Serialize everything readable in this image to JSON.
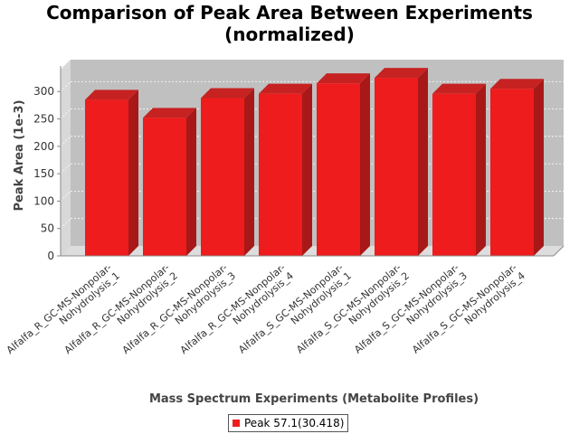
{
  "chart_data": {
    "type": "bar",
    "title_lines": [
      "Comparison of Peak Area Between Experiments",
      "(normalized)"
    ],
    "xlabel": "Mass Spectrum Experiments (Metabolite Profiles)",
    "ylabel": "Peak Area (1e-3)",
    "ylim": [
      0,
      340
    ],
    "yticks": [
      0,
      50,
      100,
      150,
      200,
      250,
      300
    ],
    "grid": true,
    "legend_position": "bottom",
    "categories": [
      [
        "Alfalfa_R_GC-MS-Nonpolar-",
        "Nohydrolysis_1"
      ],
      [
        "Alfalfa_R_GC-MS-Nonpolar-",
        "Nohydrolysis_2"
      ],
      [
        "Alfalfa_R_GC-MS-Nonpolar-",
        "Nohydrolysis_3"
      ],
      [
        "Alfalfa_R_GC-MS-Nonpolar-",
        "Nohydrolysis_4"
      ],
      [
        "Alfalfa_S_GC-MS-Nonpolar-",
        "Nohydrolysis_1"
      ],
      [
        "Alfalfa_S_GC-MS-Nonpolar-",
        "Nohydrolysis_2"
      ],
      [
        "Alfalfa_S_GC-MS-Nonpolar-",
        "Nohydrolysis_3"
      ],
      [
        "Alfalfa_S_GC-MS-Nonpolar-",
        "Nohydrolysis_4"
      ]
    ],
    "series": [
      {
        "name": "Peak 57.1(30.418)",
        "color": "#ee1c1c",
        "values": [
          285,
          252,
          288,
          296,
          315,
          325,
          296,
          305
        ]
      }
    ]
  }
}
